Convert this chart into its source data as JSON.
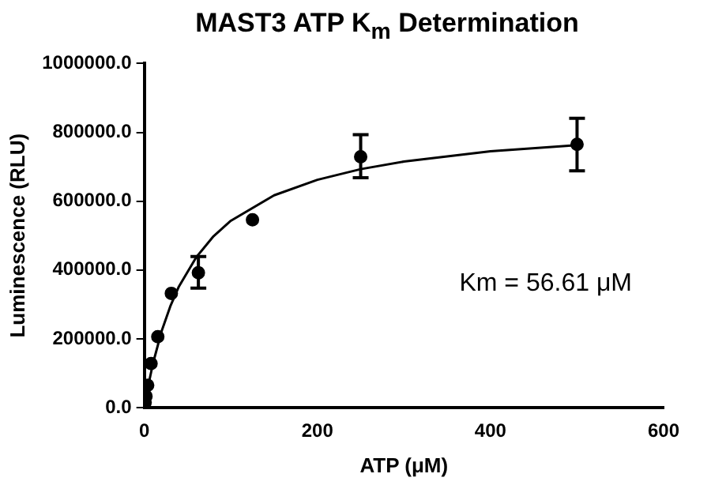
{
  "chart_data": {
    "type": "scatter",
    "title": "MAST3 ATP K$_{m}$ Determination",
    "xlabel": "ATP (μM)",
    "ylabel": "Luminescence (RLU)",
    "xlim": [
      0,
      600
    ],
    "xticks": [
      0,
      200,
      400,
      600
    ],
    "ylim": [
      0,
      1000000
    ],
    "yticks": [
      {
        "value": 0,
        "label": "0.0"
      },
      {
        "value": 200000,
        "label": "200000.0"
      },
      {
        "value": 400000,
        "label": "400000.0"
      },
      {
        "value": 600000,
        "label": "600000.0"
      },
      {
        "value": 800000,
        "label": "800000.0"
      },
      {
        "value": 1000000,
        "label": "1000000.0"
      }
    ],
    "grid": false,
    "legend": false,
    "annotations": [
      "Km = 56.61 μM"
    ],
    "series": [
      {
        "type": "scatter",
        "color": "#000000",
        "marker": "circle",
        "x": [
          0.98,
          1.95,
          3.9,
          7.8,
          15.6,
          31.25,
          62.5,
          125,
          250,
          500
        ],
        "values": [
          15000,
          33000,
          65000,
          128000,
          206000,
          332000,
          392000,
          546000,
          729000,
          765000
        ],
        "errors": [
          null,
          null,
          null,
          null,
          null,
          null,
          [
            347000,
            439000
          ],
          null,
          [
            668000,
            793000
          ],
          [
            688000,
            841000
          ]
        ]
      },
      {
        "type": "line",
        "color": "#000000",
        "marker": "none",
        "line_style": "solid",
        "x": [
          0,
          5,
          10,
          20,
          30,
          40,
          60,
          80,
          100,
          150,
          200,
          250,
          300,
          400,
          500
        ],
        "values": [
          0,
          69000,
          128000,
          222000,
          294000,
          352000,
          437000,
          498000,
          543000,
          617000,
          662000,
          693000,
          715000,
          745000,
          763000
        ]
      }
    ]
  }
}
